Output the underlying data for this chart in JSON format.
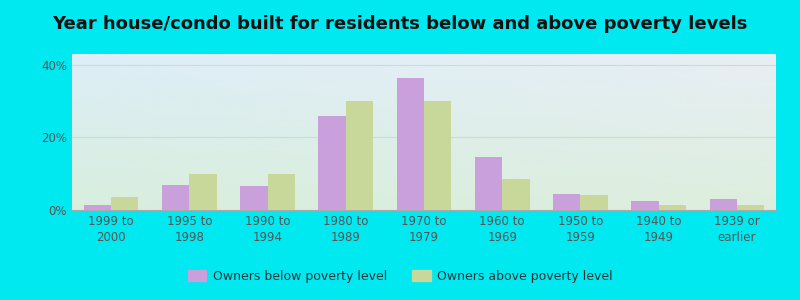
{
  "title": "Year house/condo built for residents below and above poverty levels",
  "categories": [
    "1999 to\n2000",
    "1995 to\n1998",
    "1990 to\n1994",
    "1980 to\n1989",
    "1970 to\n1979",
    "1960 to\n1969",
    "1950 to\n1959",
    "1940 to\n1949",
    "1939 or\nearlier"
  ],
  "below_poverty": [
    1.5,
    7.0,
    6.5,
    26.0,
    36.5,
    14.5,
    4.5,
    2.5,
    3.0
  ],
  "above_poverty": [
    3.5,
    10.0,
    10.0,
    30.0,
    30.0,
    8.5,
    4.0,
    1.5,
    1.5
  ],
  "below_color": "#c9a0dc",
  "above_color": "#c8d89a",
  "background_outer": "#00e8f0",
  "background_inner_top_left": "#ddeef8",
  "background_inner_bottom_right": "#ddeedd",
  "yticks": [
    0,
    20,
    40
  ],
  "ylim": [
    0,
    43
  ],
  "bar_width": 0.35,
  "legend_below_label": "Owners below poverty level",
  "legend_above_label": "Owners above poverty level",
  "title_fontsize": 13,
  "tick_fontsize": 8.5,
  "legend_fontsize": 9,
  "grid_color": "#ccddcc",
  "spine_color": "#aaaaaa"
}
